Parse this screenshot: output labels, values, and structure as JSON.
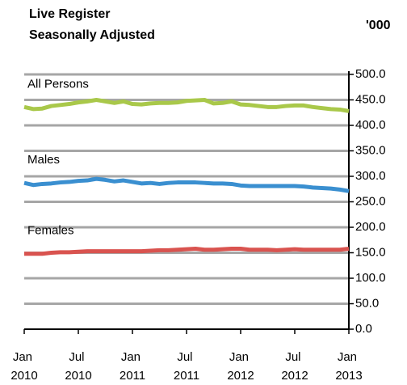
{
  "chart_data": {
    "type": "line",
    "title": "Live Register",
    "subtitle": "Seasonally Adjusted",
    "unit_label": "'000",
    "categories": [
      "Jan 2010",
      null,
      null,
      null,
      null,
      null,
      "Jul 2010",
      null,
      null,
      null,
      null,
      null,
      "Jan 2011",
      null,
      null,
      null,
      null,
      null,
      "Jul 2011",
      null,
      null,
      null,
      null,
      null,
      "Jan 2012",
      null,
      null,
      null,
      null,
      null,
      "Jul 2012",
      null,
      null,
      null,
      null,
      null,
      "Jan 2013"
    ],
    "series": [
      {
        "name": "All Persons",
        "color": "#a9c84a",
        "values": [
          436,
          432,
          433,
          438,
          440,
          442,
          445,
          447,
          450,
          447,
          444,
          447,
          442,
          441,
          443,
          444,
          444,
          445,
          448,
          449,
          450,
          443,
          444,
          447,
          441,
          440,
          438,
          436,
          436,
          438,
          439,
          439,
          436,
          434,
          432,
          431,
          428
        ]
      },
      {
        "name": "Males",
        "color": "#3a8fd0",
        "values": [
          287,
          283,
          285,
          286,
          288,
          289,
          291,
          292,
          295,
          293,
          290,
          292,
          289,
          286,
          287,
          285,
          287,
          288,
          288,
          288,
          287,
          286,
          286,
          285,
          282,
          281,
          281,
          281,
          281,
          281,
          281,
          280,
          278,
          277,
          276,
          274,
          271
        ]
      },
      {
        "name": "Females",
        "color": "#d9534f",
        "values": [
          148,
          148,
          148,
          150,
          151,
          151,
          152,
          153,
          153,
          153,
          153,
          153,
          153,
          153,
          154,
          155,
          155,
          156,
          157,
          158,
          156,
          156,
          157,
          158,
          158,
          156,
          156,
          156,
          155,
          156,
          157,
          156,
          156,
          156,
          156,
          156,
          158
        ]
      }
    ],
    "ylim": [
      0,
      500
    ],
    "yticks": [
      {
        "value": 0,
        "label": "0.0"
      },
      {
        "value": 50,
        "label": "50.0"
      },
      {
        "value": 100,
        "label": "100.0"
      },
      {
        "value": 150,
        "label": "150.0"
      },
      {
        "value": 200,
        "label": "200.0"
      },
      {
        "value": 250,
        "label": "250.0"
      },
      {
        "value": 300,
        "label": "300.0"
      },
      {
        "value": 350,
        "label": "350.0"
      },
      {
        "value": 400,
        "label": "400.0"
      },
      {
        "value": 450,
        "label": "450.0"
      },
      {
        "value": 500,
        "label": "500.0"
      }
    ],
    "grid": true
  }
}
